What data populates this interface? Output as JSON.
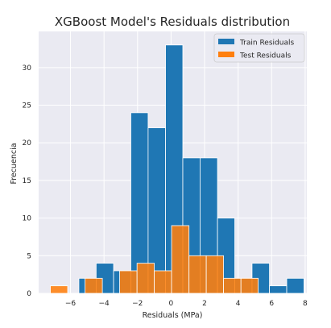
{
  "chart_data": {
    "type": "histogram",
    "title": "XGBoost Model's Residuals distribution",
    "xlabel": "Residuals (MPa)",
    "ylabel": "Frecuencia",
    "xlim": [
      -7.9,
      8.1
    ],
    "ylim": [
      0,
      34.8
    ],
    "x_ticks": [
      -6,
      -4,
      -2,
      0,
      2,
      4,
      6,
      8
    ],
    "x_tick_labels": [
      "−6",
      "−4",
      "−2",
      "0",
      "2",
      "4",
      "6",
      "8"
    ],
    "y_ticks": [
      0,
      5,
      10,
      15,
      20,
      25,
      30
    ],
    "y_tick_labels": [
      "0",
      "5",
      "10",
      "15",
      "20",
      "25",
      "30"
    ],
    "grid": true,
    "legend_position": "top-right",
    "series": [
      {
        "name": "Train Residuals",
        "color": "#1f77b4",
        "bins": [
          {
            "x0": -5.5,
            "x1": -4.47,
            "count": 2
          },
          {
            "x0": -4.47,
            "x1": -3.43,
            "count": 4
          },
          {
            "x0": -3.43,
            "x1": -2.4,
            "count": 3
          },
          {
            "x0": -2.4,
            "x1": -1.37,
            "count": 24
          },
          {
            "x0": -1.37,
            "x1": -0.33,
            "count": 22
          },
          {
            "x0": -0.33,
            "x1": 0.7,
            "count": 33
          },
          {
            "x0": 0.7,
            "x1": 1.73,
            "count": 18
          },
          {
            "x0": 1.73,
            "x1": 2.77,
            "count": 18
          },
          {
            "x0": 2.77,
            "x1": 3.8,
            "count": 10
          },
          {
            "x0": 3.8,
            "x1": 4.83,
            "count": 2
          },
          {
            "x0": 4.83,
            "x1": 5.87,
            "count": 4
          },
          {
            "x0": 5.87,
            "x1": 6.9,
            "count": 1
          },
          {
            "x0": 6.9,
            "x1": 7.93,
            "count": 2
          }
        ]
      },
      {
        "name": "Test Residuals",
        "color": "#ff7f0e",
        "bins": [
          {
            "x0": -7.2,
            "x1": -6.17,
            "count": 1
          },
          {
            "x0": -6.17,
            "x1": -5.13,
            "count": 0
          },
          {
            "x0": -5.13,
            "x1": -4.1,
            "count": 2
          },
          {
            "x0": -4.1,
            "x1": -3.07,
            "count": 0
          },
          {
            "x0": -3.07,
            "x1": -2.03,
            "count": 3
          },
          {
            "x0": -2.03,
            "x1": -1.0,
            "count": 4
          },
          {
            "x0": -1.0,
            "x1": 0.03,
            "count": 3
          },
          {
            "x0": 0.03,
            "x1": 1.07,
            "count": 9
          },
          {
            "x0": 1.07,
            "x1": 2.1,
            "count": 5
          },
          {
            "x0": 2.1,
            "x1": 3.13,
            "count": 5
          },
          {
            "x0": 3.13,
            "x1": 4.17,
            "count": 2
          },
          {
            "x0": 4.17,
            "x1": 5.2,
            "count": 2
          }
        ]
      }
    ]
  }
}
